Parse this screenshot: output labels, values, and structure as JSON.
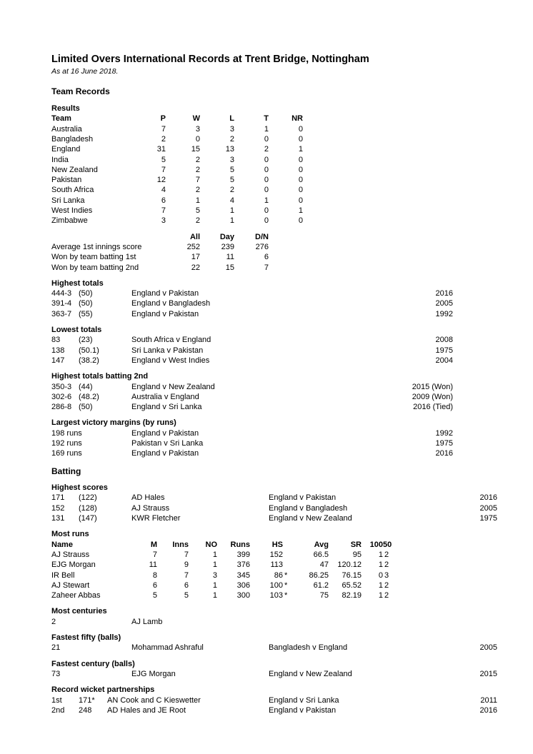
{
  "title": "Limited Overs International Records at Trent Bridge, Nottingham",
  "asof": "As at 16 June 2018.",
  "sections": {
    "teamRecords": "Team Records",
    "batting": "Batting"
  },
  "resultsHeader": "Results",
  "resultsCols": [
    "Team",
    "P",
    "W",
    "L",
    "T",
    "NR"
  ],
  "results": [
    {
      "team": "Australia",
      "p": "7",
      "w": "3",
      "l": "3",
      "t": "1",
      "nr": "0"
    },
    {
      "team": "Bangladesh",
      "p": "2",
      "w": "0",
      "l": "2",
      "t": "0",
      "nr": "0"
    },
    {
      "team": "England",
      "p": "31",
      "w": "15",
      "l": "13",
      "t": "2",
      "nr": "1"
    },
    {
      "team": "India",
      "p": "5",
      "w": "2",
      "l": "3",
      "t": "0",
      "nr": "0"
    },
    {
      "team": "New Zealand",
      "p": "7",
      "w": "2",
      "l": "5",
      "t": "0",
      "nr": "0"
    },
    {
      "team": "Pakistan",
      "p": "12",
      "w": "7",
      "l": "5",
      "t": "0",
      "nr": "0"
    },
    {
      "team": "South Africa",
      "p": "4",
      "w": "2",
      "l": "2",
      "t": "0",
      "nr": "0"
    },
    {
      "team": "Sri Lanka",
      "p": "6",
      "w": "1",
      "l": "4",
      "t": "1",
      "nr": "0"
    },
    {
      "team": "West Indies",
      "p": "7",
      "w": "5",
      "l": "1",
      "t": "0",
      "nr": "1"
    },
    {
      "team": "Zimbabwe",
      "p": "3",
      "w": "2",
      "l": "1",
      "t": "0",
      "nr": "0"
    }
  ],
  "innsCols": [
    "",
    "All",
    "Day",
    "D/N"
  ],
  "inns": [
    {
      "label": "Average 1st innings score",
      "all": "252",
      "day": "239",
      "dn": "276"
    },
    {
      "label": "Won by team batting 1st",
      "all": "17",
      "day": "11",
      "dn": "6"
    },
    {
      "label": "Won by team batting 2nd",
      "all": "22",
      "day": "15",
      "dn": "7"
    }
  ],
  "highestTotalsH": "Highest totals",
  "highestTotals": [
    {
      "score": "444-3",
      "ov": "(50)",
      "match": "England v Pakistan",
      "year": "2016"
    },
    {
      "score": "391-4",
      "ov": "(50)",
      "match": "England v Bangladesh",
      "year": "2005"
    },
    {
      "score": "363-7",
      "ov": "(55)",
      "match": "England v Pakistan",
      "year": "1992"
    }
  ],
  "lowestTotalsH": "Lowest totals",
  "lowestTotals": [
    {
      "score": "83",
      "ov": "(23)",
      "match": "South Africa v England",
      "year": "2008"
    },
    {
      "score": "138",
      "ov": "(50.1)",
      "match": "Sri Lanka v Pakistan",
      "year": "1975"
    },
    {
      "score": "147",
      "ov": "(38.2)",
      "match": "England v West Indies",
      "year": "2004"
    }
  ],
  "highest2ndH": "Highest totals batting 2nd",
  "highest2nd": [
    {
      "score": "350-3",
      "ov": "(44)",
      "match": "England v New Zealand",
      "year": "2015 (Won)"
    },
    {
      "score": "302-6",
      "ov": "(48.2)",
      "match": "Australia v England",
      "year": "2009 (Won)"
    },
    {
      "score": "286-8",
      "ov": "(50)",
      "match": "England v Sri Lanka",
      "year": "2016 (Tied)"
    }
  ],
  "marginsH": "Largest victory margins (by runs)",
  "margins": [
    {
      "runs": "198 runs",
      "match": "England v Pakistan",
      "year": "1992"
    },
    {
      "runs": "192 runs",
      "match": "Pakistan v Sri Lanka",
      "year": "1975"
    },
    {
      "runs": "169 runs",
      "match": "England v Pakistan",
      "year": "2016"
    }
  ],
  "highestScoresH": "Highest scores",
  "highestScores": [
    {
      "runs": "171",
      "balls": "(122)",
      "name": "AD Hales",
      "match": "England v Pakistan",
      "year": "2016"
    },
    {
      "runs": "152",
      "balls": "(128)",
      "name": "AJ Strauss",
      "match": "England v Bangladesh",
      "year": "2005"
    },
    {
      "runs": "131",
      "balls": "(147)",
      "name": "KWR Fletcher",
      "match": "England v New Zealand",
      "year": "1975"
    }
  ],
  "mostRunsH": "Most runs",
  "mostRunsCols": [
    "Name",
    "M",
    "Inns",
    "NO",
    "Runs",
    "HS",
    "Avg",
    "SR",
    "100",
    "50"
  ],
  "mostRuns": [
    {
      "name": "AJ Strauss",
      "m": "7",
      "inns": "7",
      "no": "1",
      "runs": "399",
      "hs": "152",
      "star": "",
      "avg": "66.5",
      "sr": "95",
      "h": "1",
      "f": "2"
    },
    {
      "name": "EJG Morgan",
      "m": "11",
      "inns": "9",
      "no": "1",
      "runs": "376",
      "hs": "113",
      "star": "",
      "avg": "47",
      "sr": "120.12",
      "h": "1",
      "f": "2"
    },
    {
      "name": "IR Bell",
      "m": "8",
      "inns": "7",
      "no": "3",
      "runs": "345",
      "hs": "86",
      "star": "*",
      "avg": "86.25",
      "sr": "76.15",
      "h": "0",
      "f": "3"
    },
    {
      "name": "AJ Stewart",
      "m": "6",
      "inns": "6",
      "no": "1",
      "runs": "306",
      "hs": "100",
      "star": "*",
      "avg": "61.2",
      "sr": "65.52",
      "h": "1",
      "f": "2"
    },
    {
      "name": "Zaheer Abbas",
      "m": "5",
      "inns": "5",
      "no": "1",
      "runs": "300",
      "hs": "103",
      "star": "*",
      "avg": "75",
      "sr": "82.19",
      "h": "1",
      "f": "2"
    }
  ],
  "mostCentH": "Most centuries",
  "mostCent": {
    "n": "2",
    "name": "AJ Lamb"
  },
  "fifty": {
    "h": "Fastest fifty (balls)",
    "n": "21",
    "name": "Mohammad Ashraful",
    "match": "Bangladesh v England",
    "year": "2005"
  },
  "century": {
    "h": "Fastest century (balls)",
    "n": "73",
    "name": "EJG Morgan",
    "match": "England v New Zealand",
    "year": "2015"
  },
  "partnershipsH": "Record wicket partnerships",
  "partnerships": [
    {
      "wkt": "1st",
      "runs": "171*",
      "names": "AN Cook and C Kieswetter",
      "match": "England v Sri Lanka",
      "year": "2011"
    },
    {
      "wkt": "2nd",
      "runs": "248",
      "names": "AD Hales and JE Root",
      "match": "England v Pakistan",
      "year": "2016"
    }
  ]
}
